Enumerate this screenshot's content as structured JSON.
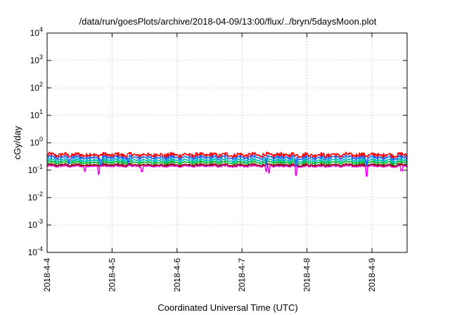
{
  "chart_data": {
    "type": "line",
    "title": "/data/run/goesPlots/archive/2018-04-09/13:00/flux/../bryn/5daysMoon.plot",
    "xlabel": "Coordinated Universal Time (UTC)",
    "ylabel": "cGy/day",
    "y_scale": "log",
    "ylim": [
      0.0001,
      10000
    ],
    "y_ticks": [
      {
        "value": 0.0001,
        "base": "10",
        "exp": "-4"
      },
      {
        "value": 0.001,
        "base": "10",
        "exp": "-3"
      },
      {
        "value": 0.01,
        "base": "10",
        "exp": "-2"
      },
      {
        "value": 0.1,
        "base": "10",
        "exp": "-1"
      },
      {
        "value": 1,
        "base": "10",
        "exp": "0"
      },
      {
        "value": 10,
        "base": "10",
        "exp": "1"
      },
      {
        "value": 100,
        "base": "10",
        "exp": "2"
      },
      {
        "value": 1000,
        "base": "10",
        "exp": "3"
      },
      {
        "value": 10000,
        "base": "10",
        "exp": "4"
      }
    ],
    "xlim": [
      "2018-04-04 00:00",
      "2018-04-09 13:00"
    ],
    "x_ticks": [
      {
        "value": "2018-04-04 00:00",
        "label": "2018-4-4"
      },
      {
        "value": "2018-04-05 00:00",
        "label": "2018-4-5"
      },
      {
        "value": "2018-04-06 00:00",
        "label": "2018-4-6"
      },
      {
        "value": "2018-04-07 00:00",
        "label": "2018-4-7"
      },
      {
        "value": "2018-04-08 00:00",
        "label": "2018-4-8"
      },
      {
        "value": "2018-04-09 00:00",
        "label": "2018-4-9"
      }
    ],
    "grid": true,
    "series": [
      {
        "color": "#ff00ff",
        "level": 0.14,
        "dips": [
          [
            "2018-04-04 14:00",
            0.09
          ],
          [
            "2018-04-04 19:00",
            0.07
          ],
          [
            "2018-04-05 11:00",
            0.09
          ],
          [
            "2018-04-07 10:00",
            0.08
          ],
          [
            "2018-04-07 09:00",
            0.09
          ],
          [
            "2018-04-07 20:00",
            0.065
          ],
          [
            "2018-04-08 22:00",
            0.06
          ],
          [
            "2018-04-09 11:00",
            0.095
          ]
        ]
      },
      {
        "color": "#8b0000",
        "level": 0.155,
        "dips": []
      },
      {
        "color": "#00bb33",
        "level": 0.19,
        "dips": []
      },
      {
        "color": "#00bbbb",
        "level": 0.23,
        "dips": []
      },
      {
        "color": "#1e64ff",
        "level": 0.29,
        "dips": [
          [
            "2018-04-04 08:00",
            0.17
          ],
          [
            "2018-04-04 20:00",
            0.16
          ],
          [
            "2018-04-05 06:00",
            0.18
          ],
          [
            "2018-04-07 09:00",
            0.15
          ],
          [
            "2018-04-07 20:00",
            0.14
          ],
          [
            "2018-04-08 22:00",
            0.15
          ]
        ]
      },
      {
        "color": "#ff0000",
        "level": 0.36,
        "dips": []
      }
    ]
  }
}
